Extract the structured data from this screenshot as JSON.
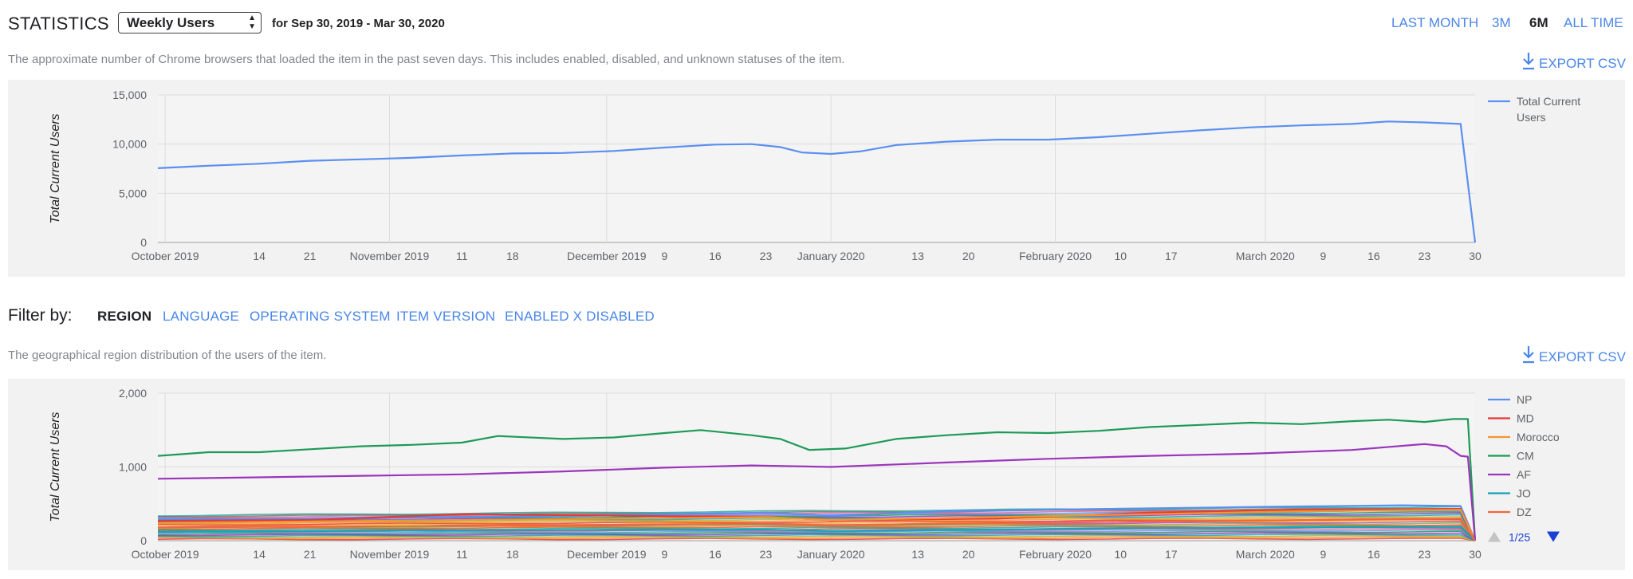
{
  "header": {
    "title": "STATISTICS",
    "metric_select": "Weekly Users",
    "date_range": "for Sep 30, 2019 - Mar 30, 2020",
    "ranges": [
      "LAST MONTH",
      "3M",
      "6M",
      "ALL TIME"
    ],
    "active_range": "6M"
  },
  "users_section": {
    "description": "The approximate number of Chrome browsers that loaded the item in the past seven days. This includes enabled, disabled, and unknown statuses of the item.",
    "export_label": "EXPORT CSV"
  },
  "filter": {
    "label": "Filter by:",
    "tabs": [
      "REGION",
      "LANGUAGE",
      "OPERATING SYSTEM",
      "ITEM VERSION",
      "ENABLED X DISABLED"
    ],
    "active_tab": "REGION"
  },
  "region_section": {
    "description": "The geographical region distribution of the users of the item.",
    "export_label": "EXPORT CSV"
  },
  "colors": {
    "accent": "#4a86e8",
    "panel_bg": "#f2f2f2",
    "series_blue": "#5b8ff0",
    "pager_arrow": "#1a3fd6"
  },
  "chart_data": [
    {
      "type": "line",
      "title": "",
      "ylabel": "Total Current Users",
      "ylim": [
        0,
        15000
      ],
      "yticks": [
        "15,000",
        "10,000",
        "5,000",
        "0"
      ],
      "xlim": [
        "2019-09-30",
        "2020-03-30"
      ],
      "xticks": [
        {
          "date": "2019-10-01",
          "label": "October 2019"
        },
        {
          "date": "2019-10-14",
          "label": "14"
        },
        {
          "date": "2019-10-21",
          "label": "21"
        },
        {
          "date": "2019-11-01",
          "label": "November 2019"
        },
        {
          "date": "2019-11-11",
          "label": "11"
        },
        {
          "date": "2019-11-18",
          "label": "18"
        },
        {
          "date": "2019-12-01",
          "label": "December 2019"
        },
        {
          "date": "2019-12-09",
          "label": "9"
        },
        {
          "date": "2019-12-16",
          "label": "16"
        },
        {
          "date": "2019-12-23",
          "label": "23"
        },
        {
          "date": "2020-01-01",
          "label": "January 2020"
        },
        {
          "date": "2020-01-13",
          "label": "13"
        },
        {
          "date": "2020-01-20",
          "label": "20"
        },
        {
          "date": "2020-02-01",
          "label": "February 2020"
        },
        {
          "date": "2020-02-10",
          "label": "10"
        },
        {
          "date": "2020-02-17",
          "label": "17"
        },
        {
          "date": "2020-03-01",
          "label": "March 2020"
        },
        {
          "date": "2020-03-09",
          "label": "9"
        },
        {
          "date": "2020-03-16",
          "label": "16"
        },
        {
          "date": "2020-03-23",
          "label": "23"
        },
        {
          "date": "2020-03-30",
          "label": "30"
        }
      ],
      "legend_position": "right",
      "series": [
        {
          "name": "Total Current Users",
          "color": "#5b8ff0",
          "points": [
            [
              "2019-09-30",
              7550
            ],
            [
              "2019-10-07",
              7800
            ],
            [
              "2019-10-14",
              8000
            ],
            [
              "2019-10-21",
              8300
            ],
            [
              "2019-10-28",
              8450
            ],
            [
              "2019-11-04",
              8600
            ],
            [
              "2019-11-11",
              8850
            ],
            [
              "2019-11-18",
              9050
            ],
            [
              "2019-11-25",
              9100
            ],
            [
              "2019-12-02",
              9300
            ],
            [
              "2019-12-09",
              9650
            ],
            [
              "2019-12-16",
              9950
            ],
            [
              "2019-12-21",
              10000
            ],
            [
              "2019-12-25",
              9700
            ],
            [
              "2019-12-28",
              9150
            ],
            [
              "2020-01-01",
              9000
            ],
            [
              "2020-01-05",
              9250
            ],
            [
              "2020-01-10",
              9900
            ],
            [
              "2020-01-17",
              10250
            ],
            [
              "2020-01-24",
              10450
            ],
            [
              "2020-01-31",
              10450
            ],
            [
              "2020-02-07",
              10700
            ],
            [
              "2020-02-14",
              11050
            ],
            [
              "2020-02-21",
              11400
            ],
            [
              "2020-02-28",
              11700
            ],
            [
              "2020-03-06",
              11900
            ],
            [
              "2020-03-13",
              12050
            ],
            [
              "2020-03-18",
              12300
            ],
            [
              "2020-03-23",
              12200
            ],
            [
              "2020-03-28",
              12050
            ],
            [
              "2020-03-30",
              0
            ]
          ]
        }
      ]
    },
    {
      "type": "line",
      "title": "",
      "ylabel": "Total Current Users",
      "ylim": [
        0,
        2000
      ],
      "yticks": [
        "2,000",
        "1,000",
        "0"
      ],
      "xlim": [
        "2019-09-30",
        "2020-03-30"
      ],
      "xticks": [
        {
          "date": "2019-10-01",
          "label": "October 2019"
        },
        {
          "date": "2019-10-14",
          "label": "14"
        },
        {
          "date": "2019-10-21",
          "label": "21"
        },
        {
          "date": "2019-11-01",
          "label": "November 2019"
        },
        {
          "date": "2019-11-11",
          "label": "11"
        },
        {
          "date": "2019-11-18",
          "label": "18"
        },
        {
          "date": "2019-12-01",
          "label": "December 2019"
        },
        {
          "date": "2019-12-09",
          "label": "9"
        },
        {
          "date": "2019-12-16",
          "label": "16"
        },
        {
          "date": "2019-12-23",
          "label": "23"
        },
        {
          "date": "2020-01-01",
          "label": "January 2020"
        },
        {
          "date": "2020-01-13",
          "label": "13"
        },
        {
          "date": "2020-01-20",
          "label": "20"
        },
        {
          "date": "2020-02-01",
          "label": "February 2020"
        },
        {
          "date": "2020-02-10",
          "label": "10"
        },
        {
          "date": "2020-02-17",
          "label": "17"
        },
        {
          "date": "2020-03-01",
          "label": "March 2020"
        },
        {
          "date": "2020-03-09",
          "label": "9"
        },
        {
          "date": "2020-03-16",
          "label": "16"
        },
        {
          "date": "2020-03-23",
          "label": "23"
        },
        {
          "date": "2020-03-30",
          "label": "30"
        }
      ],
      "legend_position": "right",
      "legend_page": "1/25",
      "series": [
        {
          "name": "NP",
          "color": "#5b8ff0",
          "points": [
            [
              "2019-09-30",
              290
            ],
            [
              "2019-10-21",
              300
            ],
            [
              "2019-11-11",
              320
            ],
            [
              "2019-12-02",
              350
            ],
            [
              "2019-12-23",
              380
            ],
            [
              "2020-01-01",
              340
            ],
            [
              "2020-01-17",
              400
            ],
            [
              "2020-02-07",
              430
            ],
            [
              "2020-03-02",
              460
            ],
            [
              "2020-03-20",
              480
            ],
            [
              "2020-03-28",
              470
            ],
            [
              "2020-03-30",
              0
            ]
          ]
        },
        {
          "name": "MD",
          "color": "#e53935",
          "points": [
            [
              "2019-09-30",
              270
            ],
            [
              "2019-10-21",
              280
            ],
            [
              "2019-11-11",
              360
            ],
            [
              "2019-12-02",
              340
            ],
            [
              "2019-12-23",
              320
            ],
            [
              "2020-01-01",
              280
            ],
            [
              "2020-01-24",
              300
            ],
            [
              "2020-02-14",
              380
            ],
            [
              "2020-03-06",
              420
            ],
            [
              "2020-03-28",
              430
            ],
            [
              "2020-03-30",
              0
            ]
          ]
        },
        {
          "name": "Morocco",
          "color": "#f29630",
          "points": [
            [
              "2019-09-30",
              240
            ],
            [
              "2019-10-21",
              260
            ],
            [
              "2019-11-11",
              280
            ],
            [
              "2019-12-02",
              300
            ],
            [
              "2019-12-23",
              320
            ],
            [
              "2020-01-01",
              280
            ],
            [
              "2020-01-24",
              320
            ],
            [
              "2020-02-14",
              360
            ],
            [
              "2020-03-06",
              400
            ],
            [
              "2020-03-28",
              420
            ],
            [
              "2020-03-30",
              0
            ]
          ]
        },
        {
          "name": "CM",
          "color": "#1e9a57",
          "points": [
            [
              "2019-09-30",
              1150
            ],
            [
              "2019-10-07",
              1200
            ],
            [
              "2019-10-14",
              1200
            ],
            [
              "2019-10-21",
              1240
            ],
            [
              "2019-10-28",
              1280
            ],
            [
              "2019-11-04",
              1300
            ],
            [
              "2019-11-11",
              1330
            ],
            [
              "2019-11-16",
              1420
            ],
            [
              "2019-11-25",
              1380
            ],
            [
              "2019-12-02",
              1400
            ],
            [
              "2019-12-09",
              1460
            ],
            [
              "2019-12-14",
              1500
            ],
            [
              "2019-12-21",
              1430
            ],
            [
              "2019-12-25",
              1380
            ],
            [
              "2019-12-29",
              1230
            ],
            [
              "2020-01-03",
              1250
            ],
            [
              "2020-01-10",
              1380
            ],
            [
              "2020-01-17",
              1430
            ],
            [
              "2020-01-24",
              1470
            ],
            [
              "2020-01-31",
              1460
            ],
            [
              "2020-02-07",
              1490
            ],
            [
              "2020-02-14",
              1540
            ],
            [
              "2020-02-21",
              1570
            ],
            [
              "2020-02-28",
              1600
            ],
            [
              "2020-03-06",
              1580
            ],
            [
              "2020-03-13",
              1620
            ],
            [
              "2020-03-18",
              1640
            ],
            [
              "2020-03-23",
              1610
            ],
            [
              "2020-03-27",
              1650
            ],
            [
              "2020-03-29",
              1650
            ],
            [
              "2020-03-30",
              0
            ]
          ]
        },
        {
          "name": "AF",
          "color": "#9b35bb",
          "points": [
            [
              "2019-09-30",
              840
            ],
            [
              "2019-10-14",
              860
            ],
            [
              "2019-10-28",
              880
            ],
            [
              "2019-11-11",
              900
            ],
            [
              "2019-11-25",
              940
            ],
            [
              "2019-12-09",
              990
            ],
            [
              "2019-12-21",
              1020
            ],
            [
              "2020-01-01",
              1000
            ],
            [
              "2020-01-17",
              1060
            ],
            [
              "2020-01-31",
              1110
            ],
            [
              "2020-02-14",
              1150
            ],
            [
              "2020-02-28",
              1180
            ],
            [
              "2020-03-13",
              1230
            ],
            [
              "2020-03-23",
              1310
            ],
            [
              "2020-03-26",
              1280
            ],
            [
              "2020-03-28",
              1150
            ],
            [
              "2020-03-29",
              1140
            ],
            [
              "2020-03-30",
              0
            ]
          ]
        },
        {
          "name": "JO",
          "color": "#1aa3b8",
          "points": [
            [
              "2019-09-30",
              120
            ],
            [
              "2019-11-11",
              140
            ],
            [
              "2019-12-23",
              150
            ],
            [
              "2020-01-01",
              130
            ],
            [
              "2020-02-14",
              170
            ],
            [
              "2020-03-28",
              190
            ],
            [
              "2020-03-30",
              0
            ]
          ]
        },
        {
          "name": "DZ",
          "color": "#f0683c",
          "points": [
            [
              "2019-09-30",
              180
            ],
            [
              "2019-11-11",
              200
            ],
            [
              "2019-12-23",
              230
            ],
            [
              "2020-01-01",
              210
            ],
            [
              "2020-02-14",
              260
            ],
            [
              "2020-03-28",
              300
            ],
            [
              "2020-03-30",
              0
            ]
          ]
        }
      ]
    }
  ]
}
